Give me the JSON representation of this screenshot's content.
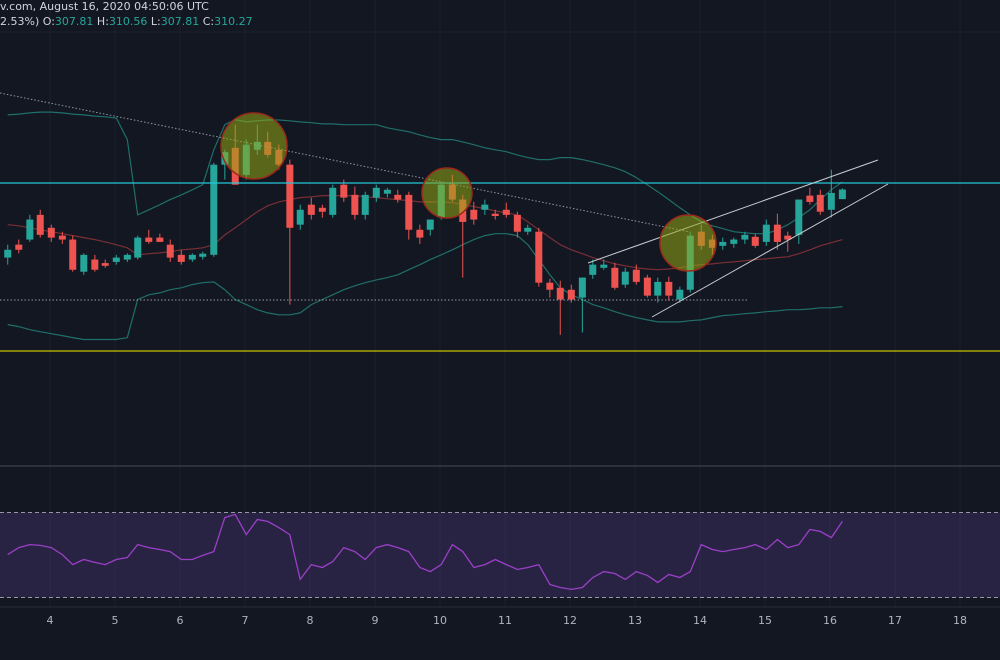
{
  "header": {
    "source": "v.com, August 16, 2020 04:50:06 UTC",
    "change": "2.53%)",
    "ohlc": [
      {
        "label": "O:",
        "value": "307.81"
      },
      {
        "label": "H:",
        "value": "310.56"
      },
      {
        "label": "L:",
        "value": "307.81"
      },
      {
        "label": "C:",
        "value": "310.27"
      }
    ]
  },
  "chart_data": {
    "type": "candlestick",
    "x": [
      3.35,
      3.52,
      3.69,
      3.85,
      4.02,
      4.19,
      4.35,
      4.52,
      4.69,
      4.85,
      5.02,
      5.19,
      5.35,
      5.52,
      5.69,
      5.85,
      6.02,
      6.19,
      6.35,
      6.52,
      6.69,
      6.85,
      7.02,
      7.19,
      7.35,
      7.52,
      7.69,
      7.85,
      8.02,
      8.19,
      8.35,
      8.52,
      8.69,
      8.85,
      9.02,
      9.19,
      9.35,
      9.52,
      9.69,
      9.85,
      10.02,
      10.19,
      10.35,
      10.52,
      10.69,
      10.85,
      11.02,
      11.19,
      11.35,
      11.52,
      11.69,
      11.85,
      12.02,
      12.19,
      12.35,
      12.52,
      12.69,
      12.85,
      13.02,
      13.19,
      13.35,
      13.52,
      13.69,
      13.85,
      14.02,
      14.19,
      14.35,
      14.52,
      14.69,
      14.85,
      15.02,
      15.19,
      15.35,
      15.52,
      15.69,
      15.85,
      16.02,
      16.19
    ],
    "ohlc": [
      [
        292.9,
        296.2,
        291.1,
        294.9
      ],
      [
        296.2,
        297.5,
        294.0,
        294.9
      ],
      [
        297.5,
        303.8,
        296.9,
        302.6
      ],
      [
        303.8,
        305.1,
        298.0,
        298.7
      ],
      [
        300.5,
        301.3,
        296.9,
        298.0
      ],
      [
        298.5,
        299.5,
        296.4,
        297.5
      ],
      [
        297.5,
        298.5,
        289.3,
        289.8
      ],
      [
        289.3,
        294.0,
        288.5,
        293.6
      ],
      [
        292.4,
        293.6,
        289.3,
        289.8
      ],
      [
        291.5,
        292.4,
        290.3,
        290.8
      ],
      [
        291.8,
        293.6,
        291.1,
        292.9
      ],
      [
        292.4,
        294.0,
        291.8,
        293.6
      ],
      [
        292.9,
        298.5,
        292.4,
        298.0
      ],
      [
        298.0,
        300.0,
        296.4,
        296.9
      ],
      [
        298.0,
        299.0,
        296.9,
        296.9
      ],
      [
        296.2,
        297.5,
        291.8,
        292.9
      ],
      [
        293.6,
        294.9,
        291.1,
        291.8
      ],
      [
        292.4,
        294.0,
        291.8,
        293.6
      ],
      [
        293.1,
        294.4,
        292.4,
        293.9
      ],
      [
        293.6,
        317.1,
        293.1,
        316.6
      ],
      [
        316.6,
        320.4,
        312.8,
        319.8
      ],
      [
        320.9,
        326.8,
        311.5,
        311.5
      ],
      [
        314.0,
        323.0,
        312.8,
        321.7
      ],
      [
        320.4,
        326.8,
        319.1,
        322.4
      ],
      [
        322.4,
        325.0,
        318.4,
        319.1
      ],
      [
        320.4,
        321.7,
        315.3,
        316.6
      ],
      [
        316.6,
        317.9,
        280.9,
        300.5
      ],
      [
        301.3,
        306.4,
        300.0,
        305.1
      ],
      [
        306.4,
        308.2,
        302.6,
        303.8
      ],
      [
        305.6,
        306.4,
        303.1,
        304.6
      ],
      [
        303.8,
        311.5,
        303.1,
        310.7
      ],
      [
        311.5,
        312.8,
        307.1,
        308.2
      ],
      [
        308.9,
        311.0,
        302.6,
        303.8
      ],
      [
        303.8,
        309.7,
        302.6,
        308.9
      ],
      [
        308.2,
        311.5,
        307.1,
        310.7
      ],
      [
        309.2,
        310.7,
        308.2,
        310.2
      ],
      [
        308.9,
        310.2,
        306.9,
        307.7
      ],
      [
        308.9,
        309.7,
        297.5,
        300.0
      ],
      [
        300.0,
        301.3,
        296.4,
        298.0
      ],
      [
        300.0,
        302.6,
        298.5,
        302.6
      ],
      [
        303.1,
        312.0,
        302.6,
        311.5
      ],
      [
        311.5,
        314.0,
        307.1,
        307.7
      ],
      [
        307.7,
        308.9,
        287.8,
        302.0
      ],
      [
        305.1,
        307.1,
        301.3,
        302.6
      ],
      [
        305.1,
        307.7,
        303.8,
        306.4
      ],
      [
        304.1,
        305.1,
        302.6,
        303.5
      ],
      [
        305.1,
        306.9,
        303.1,
        303.8
      ],
      [
        303.8,
        304.6,
        298.0,
        299.5
      ],
      [
        299.5,
        301.3,
        298.7,
        300.5
      ],
      [
        299.5,
        300.5,
        285.5,
        286.5
      ],
      [
        286.5,
        287.5,
        282.7,
        284.7
      ],
      [
        285.2,
        287.0,
        273.2,
        282.2
      ],
      [
        284.7,
        286.0,
        281.4,
        282.2
      ],
      [
        282.7,
        287.8,
        273.8,
        287.8
      ],
      [
        288.5,
        292.4,
        287.5,
        291.1
      ],
      [
        290.3,
        292.4,
        289.8,
        291.1
      ],
      [
        290.3,
        291.6,
        284.7,
        285.2
      ],
      [
        286.0,
        290.3,
        285.2,
        289.3
      ],
      [
        289.8,
        291.1,
        286.0,
        286.7
      ],
      [
        287.8,
        288.5,
        282.7,
        283.2
      ],
      [
        283.2,
        287.8,
        281.4,
        286.7
      ],
      [
        286.7,
        288.0,
        281.9,
        283.2
      ],
      [
        282.2,
        285.5,
        281.4,
        284.7
      ],
      [
        284.7,
        299.5,
        284.0,
        298.5
      ],
      [
        299.5,
        301.3,
        294.9,
        295.9
      ],
      [
        297.5,
        298.7,
        293.6,
        295.4
      ],
      [
        295.9,
        298.0,
        294.9,
        296.9
      ],
      [
        296.4,
        298.0,
        295.4,
        297.5
      ],
      [
        297.5,
        299.5,
        296.4,
        298.7
      ],
      [
        298.2,
        299.0,
        295.4,
        295.9
      ],
      [
        296.9,
        302.6,
        295.9,
        301.3
      ],
      [
        301.3,
        304.1,
        294.9,
        296.9
      ],
      [
        298.5,
        299.5,
        294.4,
        297.5
      ],
      [
        298.7,
        307.7,
        296.4,
        307.7
      ],
      [
        308.7,
        310.7,
        306.4,
        307.1
      ],
      [
        308.9,
        310.2,
        303.8,
        304.6
      ],
      [
        305.1,
        315.3,
        303.1,
        309.4
      ],
      [
        307.81,
        310.56,
        307.81,
        310.27
      ]
    ],
    "up_color": "#26a69a",
    "down_color": "#ef5350",
    "xlim": [
      3.231,
      18.615
    ],
    "xticks": [
      4,
      5,
      6,
      7,
      8,
      9,
      10,
      11,
      12,
      13,
      14,
      15,
      16,
      17,
      18
    ],
    "grid": true,
    "ylim": [
      240,
      358.6
    ],
    "overlays": [
      {
        "color": "#1f6f6a",
        "values": [
          329.3,
          329.5,
          329.8,
          330.0,
          330.0,
          329.8,
          329.5,
          329.3,
          329.0,
          328.8,
          328.5,
          323.0,
          303.8,
          305.1,
          306.4,
          307.7,
          308.9,
          310.2,
          311.5,
          320.4,
          326.8,
          328.1,
          327.5,
          327.8,
          328.0,
          328.0,
          327.8,
          327.5,
          327.3,
          327.0,
          327.0,
          326.8,
          326.8,
          326.8,
          326.8,
          326.0,
          325.5,
          325.0,
          324.2,
          323.5,
          323.0,
          323.0,
          322.4,
          321.7,
          320.9,
          320.4,
          319.9,
          319.1,
          318.4,
          317.9,
          317.9,
          318.4,
          318.4,
          317.9,
          317.3,
          316.6,
          315.8,
          314.8,
          313.3,
          311.5,
          309.7,
          307.7,
          305.6,
          303.8,
          302.0,
          301.0,
          300.3,
          299.5,
          299.2,
          299.0,
          299.0,
          300.0,
          301.3,
          303.1,
          305.1,
          307.7,
          310.2,
          312.2
        ]
      },
      {
        "color": "#7a2f35",
        "values": [
          301.3,
          301.0,
          300.5,
          300.0,
          299.5,
          299.0,
          298.5,
          298.0,
          297.5,
          296.9,
          296.2,
          295.4,
          293.6,
          293.9,
          294.1,
          294.4,
          294.9,
          295.1,
          295.4,
          296.2,
          298.7,
          300.5,
          302.6,
          304.6,
          306.1,
          307.1,
          307.7,
          308.2,
          308.4,
          308.7,
          308.7,
          308.7,
          308.7,
          308.4,
          308.2,
          307.9,
          307.7,
          307.4,
          307.1,
          307.1,
          307.1,
          306.9,
          306.4,
          305.9,
          305.4,
          304.8,
          304.3,
          303.8,
          302.0,
          300.0,
          298.0,
          296.2,
          294.9,
          293.9,
          292.9,
          292.1,
          291.3,
          290.8,
          290.3,
          290.0,
          289.8,
          290.0,
          290.3,
          290.8,
          291.1,
          291.3,
          291.6,
          291.8,
          292.1,
          292.4,
          292.6,
          292.9,
          293.1,
          293.9,
          294.9,
          295.9,
          296.7,
          297.5
        ]
      },
      {
        "color": "#1f6f6a",
        "values": [
          275.8,
          275.3,
          274.5,
          274.0,
          273.5,
          273.0,
          272.5,
          272.0,
          272.0,
          272.0,
          272.0,
          272.5,
          282.2,
          283.4,
          283.9,
          284.7,
          285.2,
          286.0,
          286.5,
          286.7,
          284.7,
          282.2,
          280.9,
          279.6,
          278.8,
          278.3,
          278.3,
          278.8,
          280.9,
          282.2,
          283.4,
          284.7,
          285.7,
          286.5,
          287.2,
          287.8,
          288.5,
          289.8,
          291.1,
          292.4,
          293.6,
          294.9,
          296.2,
          297.5,
          298.5,
          299.0,
          299.0,
          298.5,
          296.2,
          292.4,
          288.5,
          285.2,
          283.4,
          282.2,
          280.9,
          280.1,
          279.1,
          278.3,
          277.6,
          277.0,
          276.5,
          276.5,
          276.5,
          276.8,
          277.0,
          277.6,
          278.1,
          278.3,
          278.6,
          278.8,
          279.1,
          279.3,
          279.6,
          279.6,
          279.8,
          280.1,
          280.1,
          280.4
        ]
      }
    ],
    "rsi": {
      "ylim": [
        10,
        90
      ],
      "levels": [
        30,
        70
      ],
      "color": "#9b3fc8",
      "values": [
        50.2,
        53.5,
        54.9,
        54.5,
        53.5,
        50.2,
        45.5,
        47.9,
        46.5,
        45.5,
        47.9,
        48.8,
        54.9,
        53.5,
        52.6,
        51.6,
        47.9,
        47.9,
        49.8,
        51.6,
        67.6,
        69.1,
        59.6,
        66.7,
        65.8,
        62.9,
        59.6,
        38.5,
        45.5,
        44.1,
        46.9,
        53.5,
        51.6,
        47.9,
        53.5,
        54.9,
        53.5,
        51.6,
        44.1,
        42.2,
        45.5,
        54.9,
        51.6,
        44.1,
        45.5,
        47.9,
        45.5,
        43.2,
        44.1,
        45.5,
        36.1,
        34.7,
        33.8,
        34.7,
        39.4,
        42.2,
        41.3,
        38.5,
        42.2,
        40.4,
        37.1,
        40.8,
        39.4,
        42.2,
        54.9,
        52.6,
        51.6,
        52.6,
        53.5,
        54.9,
        52.6,
        57.3,
        53.5,
        54.9,
        62.0,
        61.1,
        58.2,
        65.8
      ]
    }
  }
}
